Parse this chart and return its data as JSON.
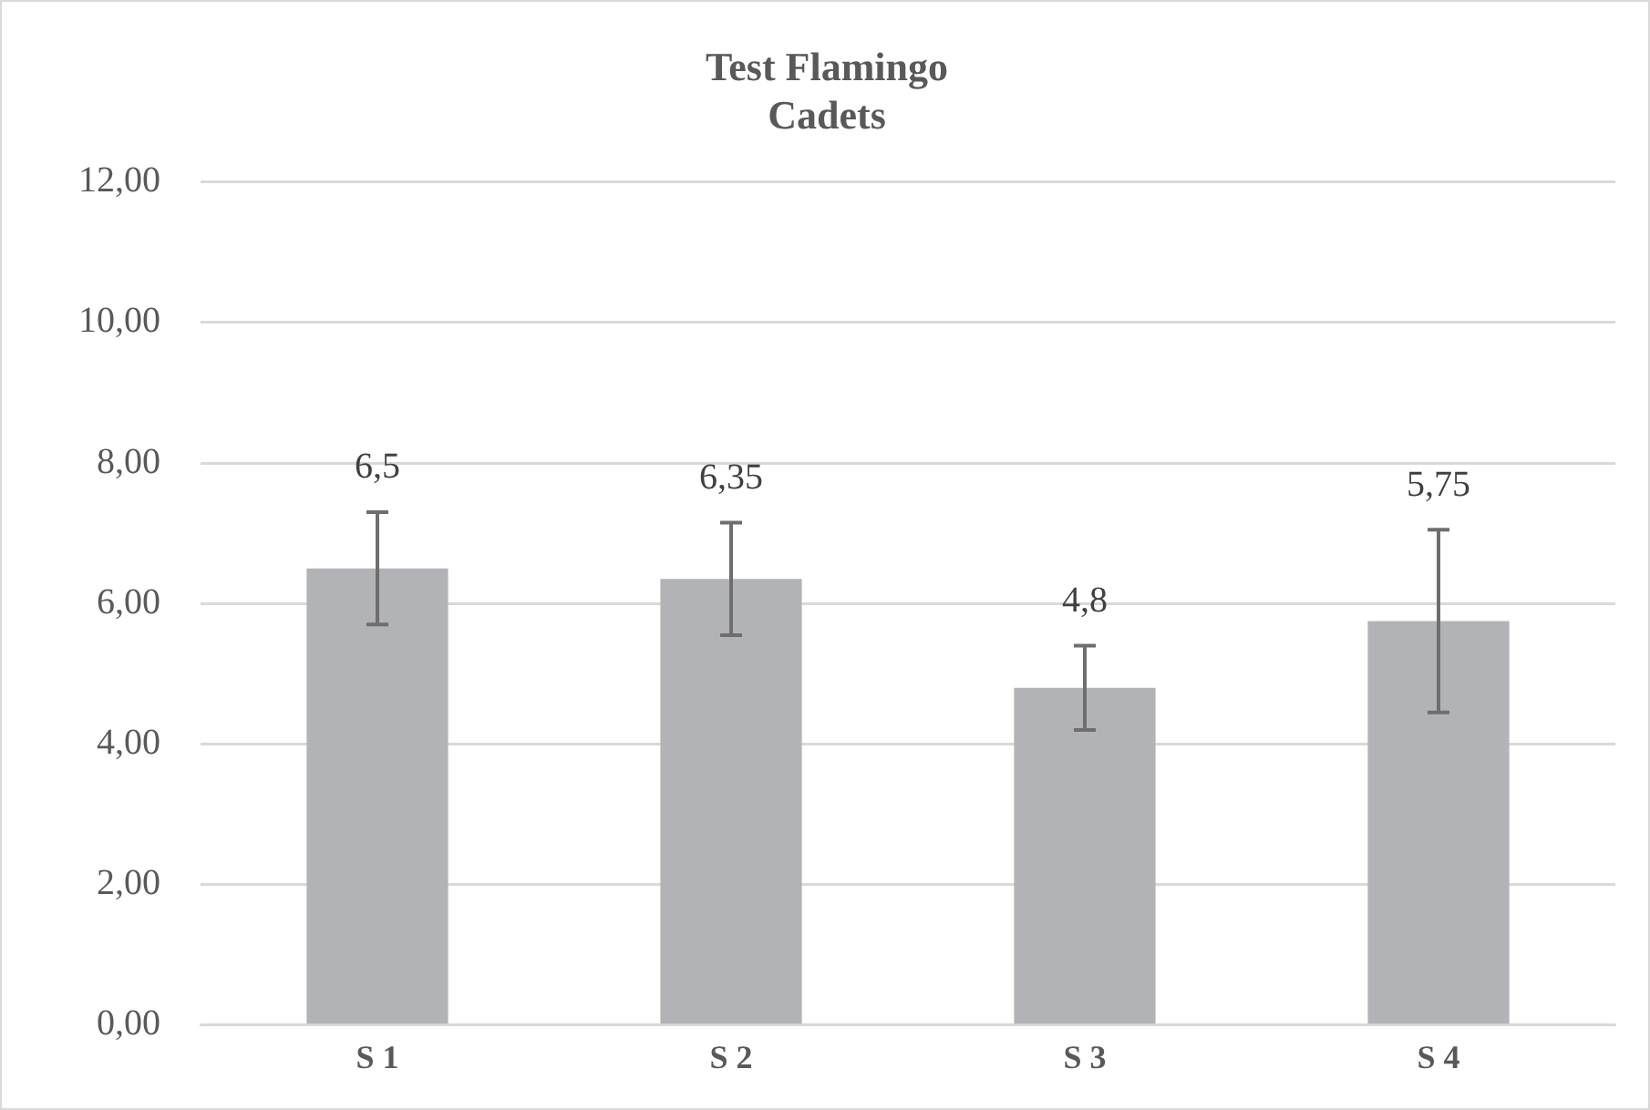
{
  "chart_data": {
    "type": "bar",
    "title": "Test Flamingo",
    "subtitle": "Cadets",
    "categories": [
      "S 1",
      "S 2",
      "S 3",
      "S 4"
    ],
    "values": [
      6.5,
      6.35,
      4.8,
      5.75
    ],
    "errors": [
      0.8,
      0.8,
      0.6,
      1.3
    ],
    "value_labels": [
      "6,5",
      "6,35",
      "4,8",
      "5,75"
    ],
    "color": "#b2b3b6",
    "ylim": [
      0,
      12
    ],
    "yticks": [
      {
        "value": 0,
        "label": "0,00"
      },
      {
        "value": 2,
        "label": "2,00"
      },
      {
        "value": 4,
        "label": "4,00"
      },
      {
        "value": 6,
        "label": "6,00"
      },
      {
        "value": 8,
        "label": "8,00"
      },
      {
        "value": 10,
        "label": "10,00"
      },
      {
        "value": 12,
        "label": "12,00"
      }
    ],
    "grid": "y"
  }
}
